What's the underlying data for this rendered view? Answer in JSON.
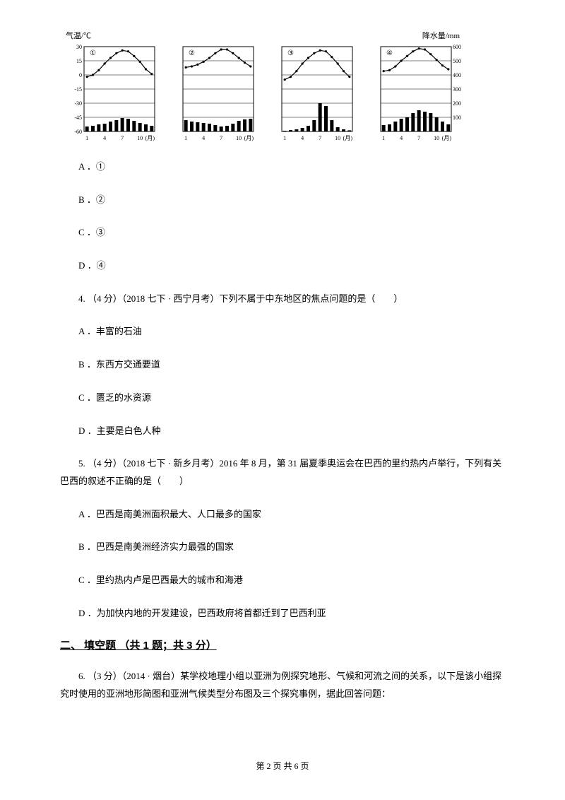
{
  "charts": {
    "axis_left_label": "气温/℃",
    "axis_right_label": "降水量/mm",
    "temp_ticks": [
      30,
      15,
      0,
      -15,
      -30,
      -45,
      -60
    ],
    "precip_ticks": [
      600,
      500,
      400,
      300,
      200,
      100
    ],
    "month_ticks": [
      "1",
      "4",
      "7",
      "10",
      "(月)"
    ],
    "panels": [
      {
        "id": "①",
        "temp": [
          -2,
          0,
          5,
          12,
          18,
          23,
          26,
          25,
          20,
          14,
          6,
          1
        ],
        "precip": [
          35,
          40,
          50,
          55,
          70,
          80,
          95,
          90,
          75,
          60,
          50,
          40
        ]
      },
      {
        "id": "②",
        "temp": [
          8,
          9,
          11,
          14,
          18,
          23,
          27,
          27,
          23,
          18,
          13,
          9
        ],
        "precip": [
          80,
          70,
          65,
          60,
          55,
          45,
          35,
          40,
          55,
          75,
          85,
          90
        ]
      },
      {
        "id": "③",
        "temp": [
          -5,
          -2,
          4,
          12,
          18,
          23,
          26,
          25,
          19,
          12,
          4,
          -2
        ],
        "precip": [
          5,
          10,
          15,
          25,
          40,
          80,
          200,
          180,
          80,
          30,
          15,
          8
        ]
      },
      {
        "id": "④",
        "temp": [
          4,
          5,
          9,
          15,
          20,
          25,
          28,
          27,
          22,
          16,
          10,
          6
        ],
        "precip": [
          45,
          50,
          70,
          90,
          100,
          130,
          150,
          140,
          130,
          100,
          70,
          50
        ]
      }
    ],
    "colors": {
      "line": "#000000",
      "bar": "#000000",
      "grid": "#000000",
      "bg": "#ffffff"
    }
  },
  "q_options_1": {
    "a": "A ．①",
    "b": "B ．②",
    "c": "C ．③",
    "d": "D ．④"
  },
  "q4": {
    "stem": "4.  （4 分）（2018 七下 · 西宁月考）下列不属于中东地区的焦点问题的是（　　）",
    "a": "A ．丰富的石油",
    "b": "B ．东西方交通要道",
    "c": "C ．匮乏的水资源",
    "d": "D ．主要是白色人种"
  },
  "q5": {
    "stem": "5.  （4 分）（2018 七下 · 新乡月考）2016 年 8 月，第 31 届夏季奥运会在巴西的里约热内卢举行，下列有关巴西的叙述不正确的是（　　）",
    "a": "A ．巴西是南美洲面积最大、人口最多的国家",
    "b": "B ．巴西是南美洲经济实力最强的国家",
    "c": "C ．里约热内卢是巴西最大的城市和海港",
    "d": "D ．为加快内地的开发建设，巴西政府将首都迁到了巴西利亚"
  },
  "section2_title": "二、 填空题 （共 1 题；共 3 分）",
  "q6": {
    "stem": "6.  （3 分）（2014 · 烟台）某学校地理小组以亚洲为例探究地形、气候和河流之间的关系，以下是该小组探究时使用的亚洲地形简图和亚洲气候类型分布图及三个探究事例，据此回答问题："
  },
  "footer": "第 2 页 共 6 页"
}
